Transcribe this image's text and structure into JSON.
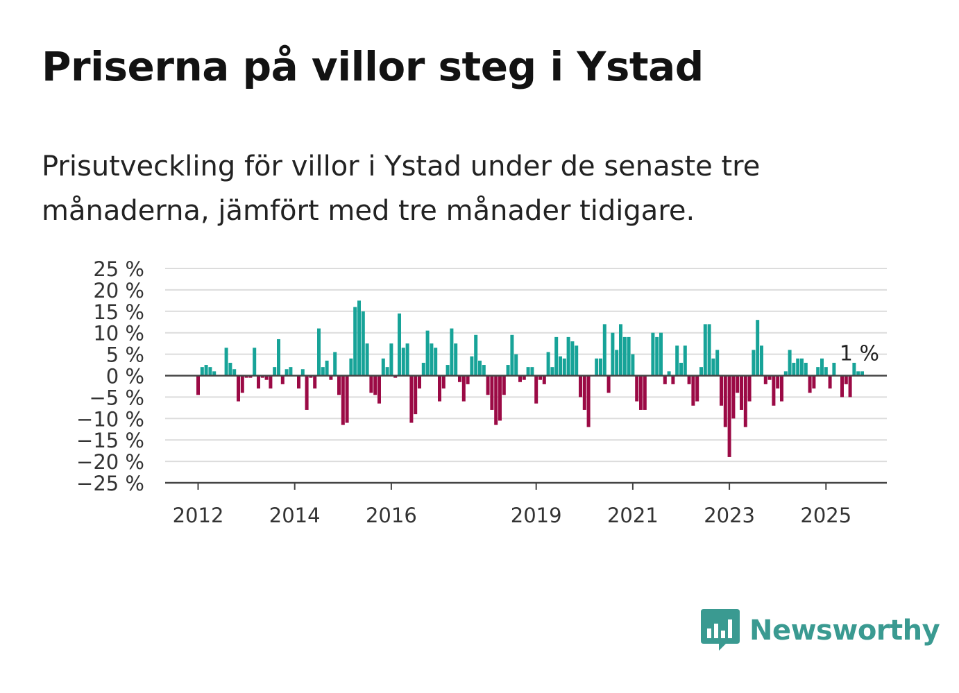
{
  "title": "Priserna på villor steg i Ystad",
  "subtitle": "Prisutveckling för villor i Ystad under de senaste tre månaderna, jämfört med tre månader tidigare.",
  "brand": {
    "name": "Newsworthy",
    "color": "#3a9a91",
    "icon": "bar-chart-speech-bubble-icon"
  },
  "chart_data": {
    "type": "bar",
    "ylabel": "",
    "xlabel": "",
    "ylim": [
      -25,
      25
    ],
    "y_ticks": [
      25,
      20,
      15,
      10,
      5,
      0,
      -5,
      -10,
      -15,
      -20,
      -25
    ],
    "y_tick_labels": [
      "25 %",
      "20 %",
      "15 %",
      "10 %",
      "5 %",
      "0 %",
      "−5 %",
      "−10 %",
      "−15 %",
      "−20 %",
      "−25 %"
    ],
    "x_tick_labels": [
      {
        "label": "2012",
        "year": 2012
      },
      {
        "label": "2014",
        "year": 2014
      },
      {
        "label": "2016",
        "year": 2016
      },
      {
        "label": "2019",
        "year": 2019
      },
      {
        "label": "2021",
        "year": 2021
      },
      {
        "label": "2023",
        "year": 2023
      },
      {
        "label": "2025",
        "year": 2025
      }
    ],
    "start": "2012-01",
    "frequency": "monthly",
    "positive_color": "#17a398",
    "negative_color": "#9b0a45",
    "end_label": "1 %",
    "values": [
      -4.5,
      2,
      2.5,
      2,
      1,
      0,
      0,
      6.5,
      3,
      1.5,
      -6,
      -4,
      -0.5,
      -0.5,
      6.5,
      -3,
      -0.5,
      -1,
      -3,
      2,
      8.5,
      -2,
      1.5,
      2,
      0,
      -3,
      1.5,
      -8,
      -0.5,
      -3,
      11,
      2,
      3.5,
      -1,
      5.5,
      -4.5,
      -11.5,
      -11,
      4,
      16,
      17.5,
      15,
      7.5,
      -4,
      -4.5,
      -6.5,
      4,
      2,
      7.5,
      -0.5,
      14.5,
      6.5,
      7.5,
      -11,
      -9,
      -3,
      3,
      10.5,
      7.5,
      6.5,
      -6,
      -3,
      2.5,
      11,
      7.5,
      -1.5,
      -6,
      -2,
      4.5,
      9.5,
      3.5,
      2.5,
      -4.5,
      -8,
      -11.5,
      -10.5,
      -4.5,
      2.5,
      9.5,
      5,
      -1.5,
      -1,
      2,
      2,
      -6.5,
      -1,
      -2,
      5.5,
      2,
      9,
      4.5,
      4,
      9,
      8,
      7,
      -5,
      -8,
      -12,
      0,
      4,
      4,
      12,
      -4,
      10,
      6,
      12,
      9,
      9,
      5,
      -6,
      -8,
      -8,
      0,
      10,
      9,
      10,
      -2,
      1,
      -2,
      7,
      3,
      7,
      -2,
      -7,
      -6,
      2,
      12,
      12,
      4,
      6,
      -7,
      -12,
      -19,
      -10,
      -4,
      -8,
      -12,
      -6,
      6,
      13,
      7,
      -2,
      -1,
      -7,
      -3,
      -6,
      1,
      6,
      3,
      4,
      4,
      3,
      -4,
      -3,
      2,
      4,
      2,
      -3,
      3,
      0,
      -5,
      -2,
      -5,
      3,
      1,
      1
    ]
  }
}
